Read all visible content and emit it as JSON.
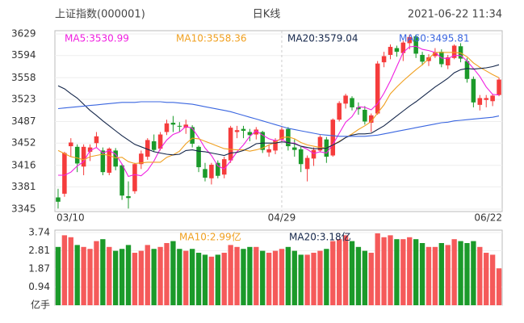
{
  "header": {
    "title": "上证指数(000001)",
    "period": "日K线",
    "time": "2021-06-22 11:34"
  },
  "chart_data": [
    {
      "type": "candlestick",
      "categories": [
        "03/10",
        null,
        null,
        null,
        null,
        null,
        null,
        null,
        null,
        null,
        null,
        null,
        null,
        null,
        null,
        null,
        null,
        null,
        null,
        null,
        null,
        null,
        null,
        null,
        null,
        null,
        null,
        null,
        null,
        null,
        null,
        null,
        null,
        null,
        null,
        "04/29",
        null,
        null,
        null,
        null,
        null,
        null,
        null,
        null,
        null,
        null,
        null,
        null,
        null,
        null,
        null,
        null,
        null,
        null,
        null,
        null,
        null,
        null,
        null,
        null,
        null,
        null,
        null,
        null,
        null,
        null,
        null,
        null,
        null,
        "06/22"
      ],
      "open": [
        3364,
        3370,
        3447,
        3446,
        3414,
        3438,
        3452,
        3440,
        3404,
        3440,
        3416,
        3366,
        3374,
        3418,
        3430,
        3455,
        3443,
        3470,
        3485,
        3480,
        3477,
        3478,
        3446,
        3410,
        3395,
        3420,
        3401,
        3424,
        3470,
        3475,
        3470,
        3466,
        3470,
        3437,
        3440,
        3458,
        3475,
        3445,
        3442,
        3410,
        3427,
        3440,
        3458,
        3432,
        3490,
        3516,
        3525,
        3510,
        3506,
        3485,
        3500,
        3583,
        3595,
        3606,
        3598,
        3614,
        3625,
        3595,
        3585,
        3593,
        3600,
        3578,
        3590,
        3609,
        3585,
        3556,
        3514,
        3522,
        3520,
        3530
      ],
      "high": [
        3378,
        3438,
        3460,
        3450,
        3450,
        3450,
        3470,
        3445,
        3445,
        3444,
        3418,
        3390,
        3420,
        3440,
        3460,
        3466,
        3470,
        3490,
        3496,
        3486,
        3490,
        3481,
        3448,
        3420,
        3420,
        3424,
        3430,
        3480,
        3480,
        3480,
        3475,
        3478,
        3472,
        3450,
        3460,
        3478,
        3478,
        3458,
        3446,
        3432,
        3445,
        3465,
        3462,
        3492,
        3520,
        3532,
        3528,
        3518,
        3512,
        3500,
        3585,
        3600,
        3612,
        3610,
        3618,
        3628,
        3628,
        3600,
        3596,
        3606,
        3604,
        3595,
        3612,
        3614,
        3590,
        3560,
        3530,
        3530,
        3532,
        3558
      ],
      "low": [
        3346,
        3365,
        3430,
        3405,
        3400,
        3423,
        3445,
        3400,
        3400,
        3408,
        3360,
        3346,
        3370,
        3410,
        3425,
        3438,
        3440,
        3465,
        3470,
        3470,
        3467,
        3445,
        3405,
        3390,
        3385,
        3395,
        3395,
        3420,
        3460,
        3460,
        3455,
        3458,
        3436,
        3430,
        3434,
        3455,
        3440,
        3430,
        3405,
        3390,
        3415,
        3437,
        3420,
        3430,
        3487,
        3508,
        3505,
        3498,
        3482,
        3470,
        3498,
        3575,
        3588,
        3592,
        3585,
        3604,
        3590,
        3578,
        3577,
        3590,
        3575,
        3572,
        3588,
        3583,
        3550,
        3510,
        3505,
        3510,
        3512,
        3528
      ],
      "close": [
        3357,
        3436,
        3453,
        3419,
        3446,
        3445,
        3463,
        3405,
        3443,
        3414,
        3367,
        3363,
        3418,
        3435,
        3457,
        3441,
        3466,
        3484,
        3482,
        3479,
        3482,
        3451,
        3413,
        3396,
        3417,
        3399,
        3426,
        3477,
        3473,
        3472,
        3465,
        3474,
        3441,
        3442,
        3457,
        3474,
        3447,
        3441,
        3418,
        3428,
        3441,
        3462,
        3430,
        3490,
        3517,
        3529,
        3510,
        3507,
        3487,
        3497,
        3581,
        3593,
        3608,
        3600,
        3615,
        3624,
        3597,
        3584,
        3591,
        3599,
        3580,
        3591,
        3610,
        3589,
        3556,
        3518,
        3525,
        3525,
        3529,
        3555
      ],
      "up_color": "#f53c3c",
      "down_color": "#1b9a2a",
      "ylim": [
        3345,
        3629
      ],
      "yticks": [
        3345,
        3381,
        3416,
        3452,
        3487,
        3523,
        3558,
        3594,
        3629
      ],
      "grid": true,
      "series": [
        {
          "name": "MA5:3530.99",
          "color": "#f020e0",
          "values": [
            3400,
            3400,
            3405,
            3415,
            3422,
            3440,
            3445,
            3436,
            3440,
            3434,
            3418,
            3398,
            3401,
            3399,
            3408,
            3423,
            3443,
            3457,
            3466,
            3470,
            3479,
            3476,
            3461,
            3444,
            3432,
            3415,
            3410,
            3423,
            3438,
            3449,
            3463,
            3472,
            3465,
            3459,
            3456,
            3458,
            3452,
            3452,
            3447,
            3442,
            3435,
            3438,
            3436,
            3450,
            3468,
            3486,
            3495,
            3511,
            3510,
            3506,
            3516,
            3533,
            3553,
            3576,
            3599,
            3608,
            3609,
            3604,
            3602,
            3599,
            3590,
            3589,
            3594,
            3594,
            3585,
            3573,
            3560,
            3543,
            3531,
            3530
          ]
        },
        {
          "name": "MA10:3558.36",
          "color": "#f0a020",
          "values": [
            3440,
            3435,
            3430,
            3428,
            3425,
            3430,
            3432,
            3434,
            3432,
            3428,
            3429,
            3422,
            3419,
            3420,
            3421,
            3421,
            3421,
            3429,
            3433,
            3439,
            3451,
            3460,
            3459,
            3455,
            3451,
            3447,
            3443,
            3442,
            3441,
            3441,
            3439,
            3441,
            3444,
            3449,
            3453,
            3461,
            3462,
            3459,
            3453,
            3449,
            3447,
            3445,
            3444,
            3449,
            3455,
            3461,
            3467,
            3474,
            3480,
            3487,
            3501,
            3514,
            3532,
            3543,
            3553,
            3562,
            3571,
            3579,
            3589,
            3599,
            3599,
            3599,
            3599,
            3598,
            3592,
            3582,
            3575,
            3569,
            3563,
            3558
          ]
        },
        {
          "name": "MA20:3579.04",
          "color": "#14264a",
          "values": [
            3545,
            3540,
            3532,
            3525,
            3515,
            3505,
            3497,
            3488,
            3480,
            3472,
            3464,
            3457,
            3450,
            3446,
            3442,
            3438,
            3436,
            3434,
            3433,
            3434,
            3440,
            3441,
            3439,
            3438,
            3436,
            3434,
            3432,
            3436,
            3437,
            3440,
            3445,
            3451,
            3452,
            3452,
            3452,
            3454,
            3453,
            3451,
            3447,
            3445,
            3443,
            3443,
            3444,
            3449,
            3454,
            3461,
            3465,
            3467,
            3467,
            3468,
            3474,
            3480,
            3488,
            3496,
            3504,
            3512,
            3519,
            3527,
            3535,
            3543,
            3550,
            3557,
            3566,
            3571,
            3573,
            3572,
            3573,
            3574,
            3576,
            3579
          ]
        },
        {
          "name": "MA60:3495.81",
          "color": "#3a66e0",
          "values": [
            3508,
            3509,
            3510,
            3511,
            3512,
            3513,
            3514,
            3515,
            3516,
            3517,
            3518,
            3518,
            3518,
            3519,
            3519,
            3519,
            3519,
            3518,
            3518,
            3517,
            3516,
            3515,
            3513,
            3511,
            3509,
            3507,
            3505,
            3503,
            3500,
            3497,
            3494,
            3491,
            3488,
            3485,
            3482,
            3479,
            3476,
            3474,
            3472,
            3470,
            3468,
            3466,
            3465,
            3464,
            3463,
            3463,
            3463,
            3463,
            3463,
            3464,
            3465,
            3467,
            3469,
            3471,
            3473,
            3475,
            3477,
            3479,
            3481,
            3483,
            3485,
            3486,
            3488,
            3489,
            3490,
            3491,
            3492,
            3493,
            3494,
            3496
          ]
        }
      ]
    },
    {
      "type": "bar",
      "values": [
        3.0,
        3.6,
        3.5,
        3.1,
        3.0,
        2.9,
        3.3,
        3.4,
        3.0,
        2.8,
        2.9,
        3.1,
        2.7,
        2.8,
        3.1,
        2.9,
        3.0,
        3.2,
        3.3,
        2.9,
        2.8,
        2.9,
        2.7,
        2.6,
        2.5,
        2.6,
        2.7,
        3.1,
        3.0,
        2.9,
        3.0,
        3.0,
        2.8,
        2.7,
        2.8,
        2.9,
        3.0,
        2.8,
        2.6,
        2.6,
        2.7,
        2.8,
        2.9,
        3.3,
        3.4,
        3.6,
        3.3,
        3.0,
        2.8,
        2.7,
        3.7,
        3.5,
        3.6,
        3.4,
        3.4,
        3.5,
        3.4,
        3.2,
        3.0,
        3.0,
        3.2,
        3.1,
        3.4,
        3.3,
        3.2,
        3.3,
        3.0,
        2.7,
        2.6,
        1.9
      ],
      "up_color": "#f55a5a",
      "down_color": "#1b9a2a",
      "ylim": [
        0,
        3.74
      ],
      "yticks": [
        {
          "value": 0,
          "label": "亿手"
        },
        0.94,
        1.87,
        2.81,
        3.74
      ],
      "annotations": [
        {
          "text": "MA10:2.99亿",
          "color": "#f0a020"
        },
        {
          "text": "MA20:3.18亿",
          "color": "#14264a"
        }
      ]
    }
  ]
}
